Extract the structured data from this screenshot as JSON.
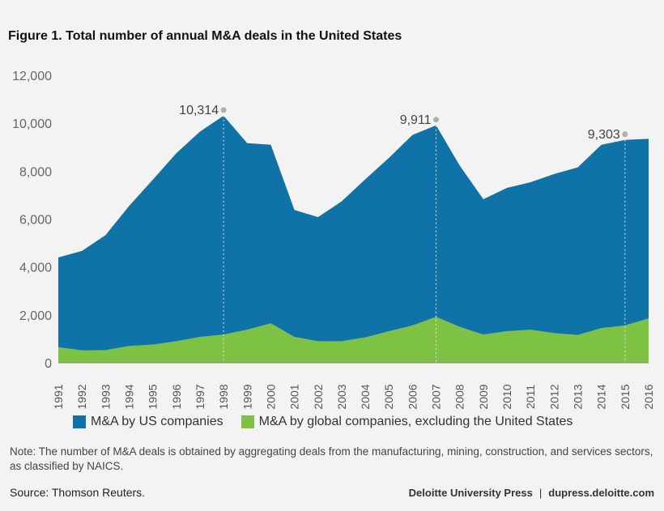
{
  "title": "Figure 1. Total number of annual M&A deals in the United States",
  "chart_data": {
    "type": "area",
    "stacked": true,
    "categories": [
      "1991",
      "1992",
      "1993",
      "1994",
      "1995",
      "1996",
      "1997",
      "1998",
      "1999",
      "2000",
      "2001",
      "2002",
      "2003",
      "2004",
      "2005",
      "2006",
      "2007",
      "2008",
      "2009",
      "2010",
      "2011",
      "2012",
      "2013",
      "2014",
      "2015",
      "2016"
    ],
    "series": [
      {
        "name": "M&A by global companies, excluding the United States",
        "color": "#7dc242",
        "values": [
          650,
          520,
          530,
          700,
          760,
          900,
          1080,
          1180,
          1380,
          1650,
          1080,
          900,
          900,
          1060,
          1320,
          1560,
          1920,
          1500,
          1180,
          1320,
          1380,
          1240,
          1160,
          1450,
          1560,
          1850
        ]
      },
      {
        "name": "M&A by US companies",
        "color": "#0f73a8",
        "values": [
          3750,
          4150,
          4800,
          5850,
          6880,
          7850,
          8570,
          9134,
          7790,
          7450,
          5300,
          5180,
          5840,
          6600,
          7230,
          7950,
          7991,
          6730,
          5650,
          5980,
          6160,
          6640,
          7000,
          7650,
          7743,
          7500
        ]
      }
    ],
    "totals": [
      4400,
      4670,
      5330,
      6550,
      7640,
      8750,
      9650,
      10314,
      9170,
      9100,
      6380,
      6080,
      6740,
      7660,
      8550,
      9510,
      9911,
      8230,
      6830,
      7300,
      7540,
      7880,
      8160,
      9100,
      9303,
      9350
    ],
    "ylim": [
      0,
      12000
    ],
    "yticks": [
      0,
      2000,
      4000,
      6000,
      8000,
      10000,
      12000
    ],
    "ytick_labels": [
      "0",
      "2,000",
      "4,000",
      "6,000",
      "8,000",
      "10,000",
      "12,000"
    ],
    "annotations": [
      {
        "category": "1998",
        "value": 10314,
        "label": "10,314"
      },
      {
        "category": "2007",
        "value": 9911,
        "label": "9,911"
      },
      {
        "category": "2015",
        "value": 9303,
        "label": "9,303"
      }
    ],
    "xlabel": "",
    "ylabel": ""
  },
  "legend": [
    {
      "label": "M&A by US companies",
      "color": "#0f73a8"
    },
    {
      "label": "M&A by global companies, excluding the United States",
      "color": "#7dc242"
    }
  ],
  "note": "Note: The number of M&A deals is obtained by aggregating deals from the manufacturing, mining, construction, and services sectors, as classified by NAICS.",
  "source": "Source: Thomson Reuters.",
  "publisher": {
    "name": "Deloitte University Press",
    "separator": "|",
    "site": "dupress.deloitte.com"
  }
}
